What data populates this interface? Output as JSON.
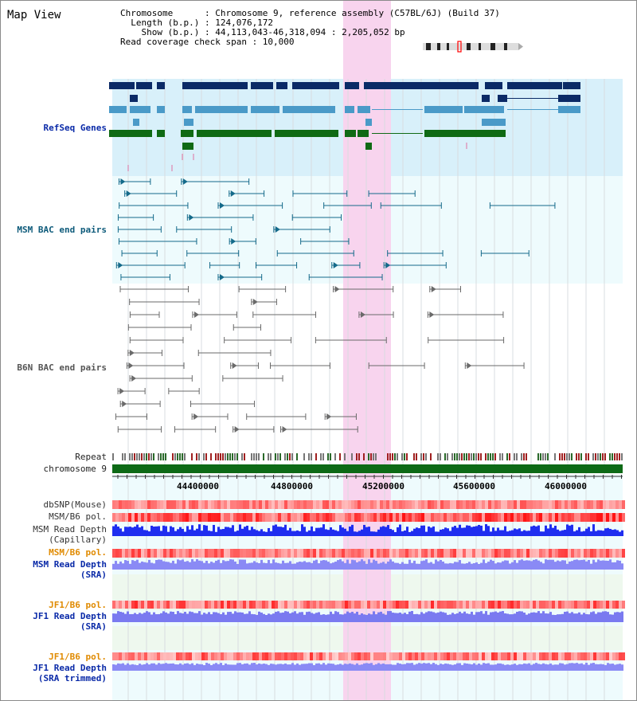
{
  "page": {
    "title": "Map View"
  },
  "info": {
    "line1": "Chromosome      : Chromosome 9, reference assembly (C57BL/6J) (Build 37)",
    "line2": "  Length (b.p.) : 124,076,172",
    "line3": "    Show (b.p.) : 44,113,043-46,318,094 : 2,205,052 bp",
    "line4": "Read coverage check span : 10,000"
  },
  "tracks": {
    "refseq": "RefSeq Genes",
    "msm_bac": "MSM BAC end pairs",
    "b6n_bac": "B6N BAC end pairs",
    "repeat": "Repeat",
    "chromosome": "chromosome 9",
    "dbsnp": "dbSNP(Mouse)",
    "msm_b6_pol_1": "MSM/B6 pol.",
    "msm_depth_cap_1": "MSM Read Depth",
    "msm_depth_cap_2": "(Capillary)",
    "msm_b6_pol_2": "MSM/B6 pol.",
    "msm_depth_sra_1": "MSM Read Depth",
    "msm_depth_sra_2": "(SRA)",
    "jf1_b6_pol_1": "JF1/B6 pol.",
    "jf1_depth_sra_1": "JF1 Read Depth",
    "jf1_depth_sra_2": "(SRA)",
    "jf1_b6_pol_2": "JF1/B6 pol.",
    "jf1_depth_trim_1": "JF1 Read Depth",
    "jf1_depth_trim_2": "(SRA trimmed)"
  },
  "axis": {
    "ticks": [
      "44400000",
      "44800000",
      "45200000",
      "45600000",
      "46000000"
    ]
  },
  "colors": {
    "refseq_bg": "#d8f0fa",
    "track_bg": "#eefbfd",
    "highlight": "#f8d4ee",
    "gene_navy": "#0b2a66",
    "gene_blue": "#4a9ac8",
    "gene_green": "#0f6a14",
    "chromosome_bar": "#0d6a16",
    "depth_capillary": "#1f2ef0",
    "depth_sra": "#8a8af5",
    "pol_red": "#f03030"
  }
}
